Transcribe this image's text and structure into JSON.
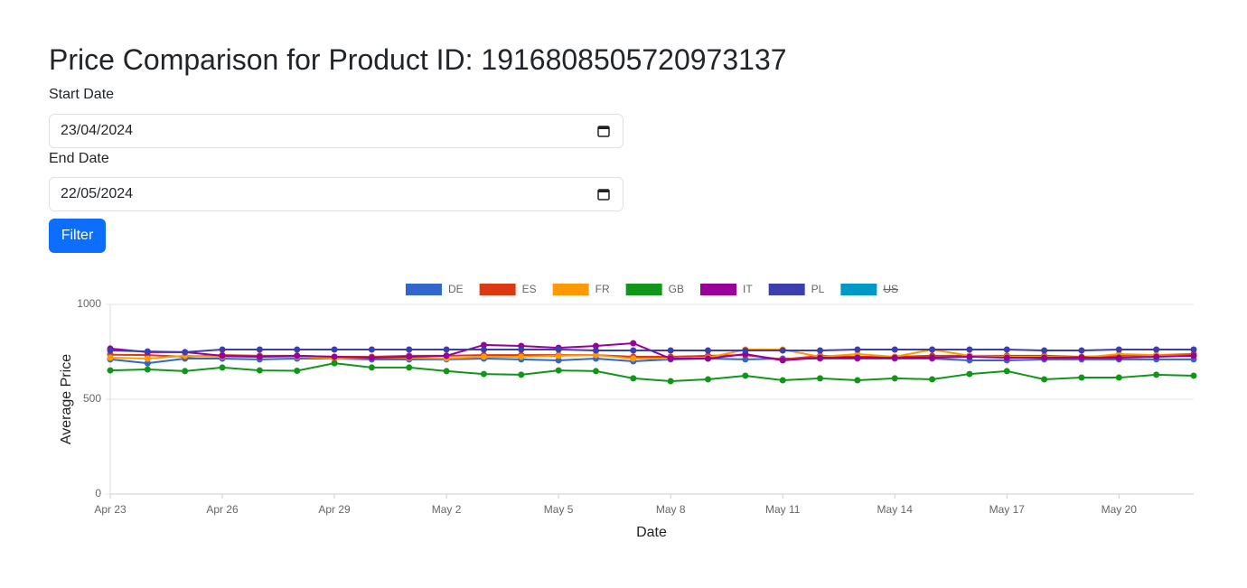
{
  "header": {
    "title": "Price Comparison for Product ID: 1916808505720973137"
  },
  "form": {
    "start_label": "Start Date",
    "start_value": "23/04/2024",
    "end_label": "End Date",
    "end_value": "22/05/2024",
    "button": "Filter"
  },
  "chart_data": {
    "type": "line",
    "xlabel": "Date",
    "ylabel": "Average Price",
    "categories": [
      "Apr 23",
      null,
      null,
      "Apr 26",
      null,
      null,
      "Apr 29",
      null,
      null,
      "May 2",
      null,
      null,
      "May 5",
      null,
      null,
      "May 8",
      null,
      null,
      "May 11",
      null,
      null,
      "May 14",
      null,
      null,
      "May 17",
      null,
      null,
      "May 20",
      null,
      null
    ],
    "ylim": [
      0,
      1000
    ],
    "yticks": [
      0,
      500,
      1000
    ],
    "grid": true,
    "legend": "top",
    "series": [
      {
        "name": "DE",
        "color": "#3366cc",
        "values": [
          710,
          690,
          714,
          714,
          710,
          714,
          714,
          710,
          710,
          710,
          714,
          710,
          705,
          714,
          700,
          710,
          714,
          710,
          714,
          714,
          714,
          714,
          714,
          705,
          705,
          710,
          710,
          710,
          710,
          710
        ]
      },
      {
        "name": "ES",
        "color": "#dc3912",
        "values": [
          735,
          733,
          724,
          733,
          729,
          729,
          724,
          724,
          729,
          729,
          733,
          733,
          733,
          733,
          724,
          724,
          729,
          733,
          710,
          729,
          724,
          724,
          729,
          729,
          729,
          729,
          724,
          729,
          733,
          738
        ]
      },
      {
        "name": "FR",
        "color": "#ff9900",
        "values": [
          719,
          714,
          729,
          724,
          724,
          724,
          714,
          719,
          719,
          714,
          724,
          724,
          729,
          733,
          714,
          714,
          719,
          762,
          762,
          724,
          738,
          724,
          762,
          729,
          724,
          724,
          719,
          738,
          733,
          729
        ]
      },
      {
        "name": "GB",
        "color": "#109618",
        "values": [
          652,
          657,
          648,
          667,
          652,
          650,
          690,
          667,
          667,
          648,
          633,
          629,
          652,
          648,
          610,
          595,
          605,
          624,
          600,
          610,
          600,
          610,
          605,
          633,
          648,
          605,
          614,
          614,
          629,
          624
        ]
      },
      {
        "name": "IT",
        "color": "#990099",
        "values": [
          767,
          748,
          748,
          729,
          724,
          729,
          724,
          719,
          724,
          729,
          786,
          781,
          771,
          781,
          795,
          714,
          714,
          738,
          705,
          719,
          719,
          719,
          719,
          724,
          719,
          719,
          719,
          719,
          724,
          729
        ]
      },
      {
        "name": "PL",
        "color": "#3b3eac",
        "values": [
          757,
          752,
          748,
          762,
          762,
          762,
          762,
          762,
          762,
          762,
          762,
          762,
          762,
          757,
          757,
          757,
          757,
          757,
          757,
          757,
          762,
          762,
          762,
          762,
          762,
          757,
          757,
          762,
          762,
          762
        ]
      },
      {
        "name": "US",
        "color": "#0099c6",
        "hidden": true,
        "values": [
          null,
          null,
          null,
          null,
          null,
          null,
          null,
          null,
          null,
          null,
          null,
          null,
          null,
          null,
          null,
          null,
          null,
          null,
          null,
          null,
          null,
          null,
          null,
          null,
          null,
          null,
          null,
          null,
          null,
          null
        ]
      }
    ]
  }
}
